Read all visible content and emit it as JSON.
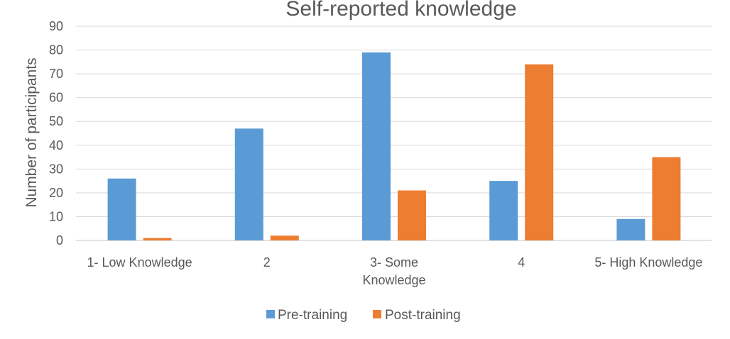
{
  "chart_data": {
    "type": "bar",
    "title": "Self-reported knowledge",
    "categories": [
      [
        "1- Low Knowledge"
      ],
      [
        "2"
      ],
      [
        "3- Some",
        "Knowledge"
      ],
      [
        "4"
      ],
      [
        "5- High Knowledge"
      ]
    ],
    "series": [
      {
        "name": "Pre-training",
        "color": "#5b9bd5",
        "values": [
          26,
          47,
          79,
          25,
          9
        ]
      },
      {
        "name": "Post-training",
        "color": "#ed7d31",
        "values": [
          1,
          2,
          21,
          74,
          35
        ]
      }
    ],
    "xlabel": "",
    "ylabel": "Number of participants",
    "ylim": [
      0,
      90
    ],
    "yticks": [
      0,
      10,
      20,
      30,
      40,
      50,
      60,
      70,
      80,
      90
    ],
    "grid": true,
    "legend": "bottom-center"
  }
}
